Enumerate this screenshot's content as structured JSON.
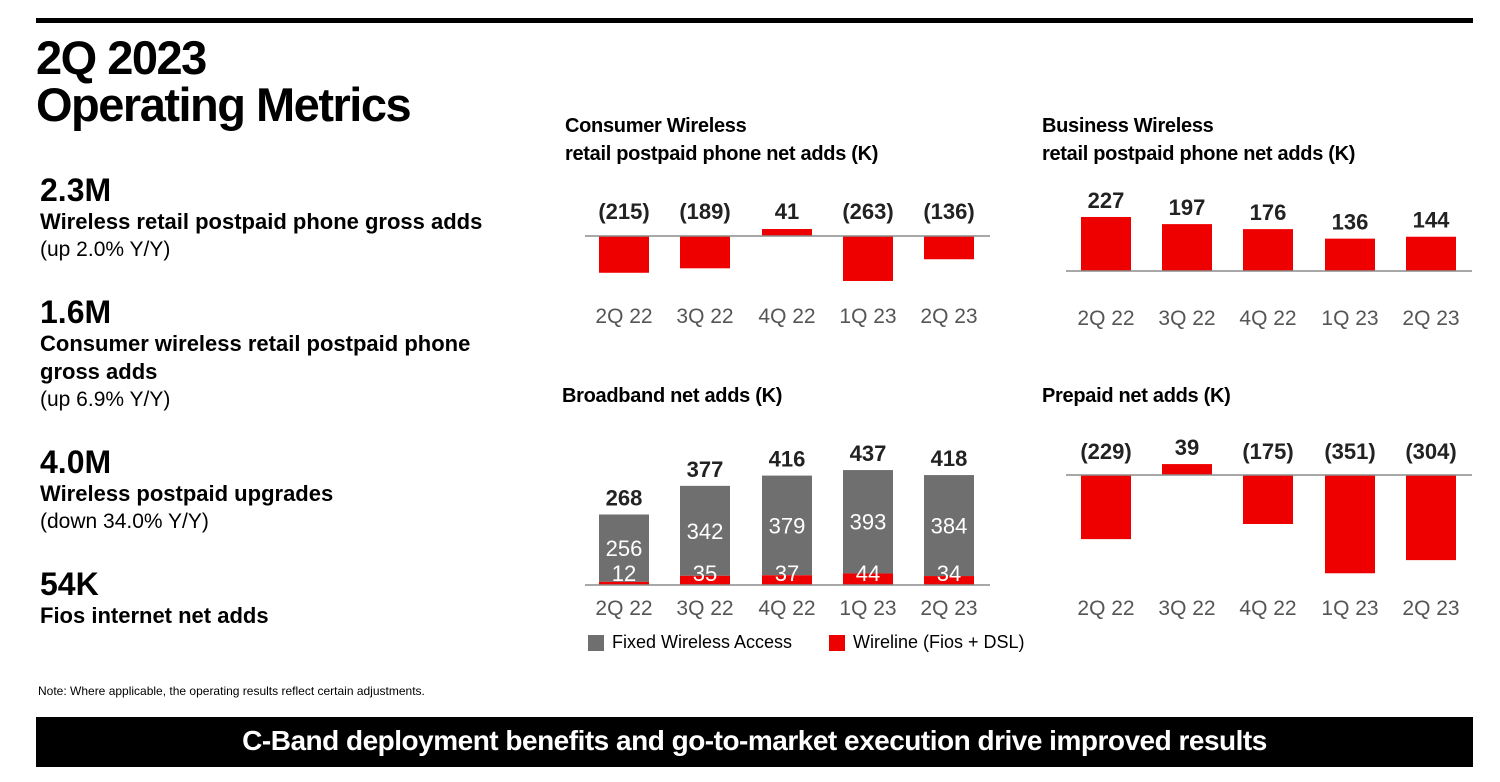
{
  "header": {
    "title_line1": "2Q 2023",
    "title_line2": "Operating Metrics"
  },
  "metrics": [
    {
      "value": "2.3M",
      "label": "Wireless retail postpaid phone gross adds",
      "change": "(up 2.0% Y/Y)"
    },
    {
      "value": "1.6M",
      "label": "Consumer wireless retail postpaid phone gross adds",
      "change": "(up 6.9% Y/Y)"
    },
    {
      "value": "4.0M",
      "label": "Wireless postpaid upgrades",
      "change": "(down 34.0% Y/Y)"
    },
    {
      "value": "54K",
      "label": "Fios internet net adds",
      "change": ""
    }
  ],
  "colors": {
    "red": "#EE0000",
    "gray": "#6F6F6F",
    "axis": "#8C8C8C"
  },
  "chart_data": [
    {
      "id": "consumer",
      "type": "bar",
      "title_line1": "Consumer Wireless",
      "title_line2": "retail postpaid phone net adds (K)",
      "categories": [
        "2Q 22",
        "3Q 22",
        "4Q 22",
        "1Q 23",
        "2Q 23"
      ],
      "values": [
        -215,
        -189,
        41,
        -263,
        -136
      ],
      "labels": [
        "(215)",
        "(189)",
        "41",
        "(263)",
        "(136)"
      ]
    },
    {
      "id": "business",
      "type": "bar",
      "title_line1": "Business Wireless",
      "title_line2": "retail postpaid phone net adds (K)",
      "categories": [
        "2Q 22",
        "3Q 22",
        "4Q 22",
        "1Q 23",
        "2Q 23"
      ],
      "values": [
        227,
        197,
        176,
        136,
        144
      ],
      "labels": [
        "227",
        "197",
        "176",
        "136",
        "144"
      ]
    },
    {
      "id": "broadband",
      "type": "bar",
      "stacked": true,
      "title_line1": "Broadband net adds (K)",
      "categories": [
        "2Q 22",
        "3Q 22",
        "4Q 22",
        "1Q 23",
        "2Q 23"
      ],
      "series": [
        {
          "name": "Wireline (Fios + DSL)",
          "values": [
            12,
            35,
            37,
            44,
            34
          ]
        },
        {
          "name": "Fixed Wireless Access",
          "values": [
            256,
            342,
            379,
            393,
            384
          ]
        }
      ],
      "totals": [
        268,
        377,
        416,
        437,
        418
      ],
      "legend": [
        "Fixed Wireless Access",
        "Wireline (Fios + DSL)"
      ]
    },
    {
      "id": "prepaid",
      "type": "bar",
      "title_line1": "Prepaid net adds (K)",
      "categories": [
        "2Q 22",
        "3Q 22",
        "4Q 22",
        "1Q 23",
        "2Q 23"
      ],
      "values": [
        -229,
        39,
        -175,
        -351,
        -304
      ],
      "labels": [
        "(229)",
        "39",
        "(175)",
        "(351)",
        "(304)"
      ]
    }
  ],
  "note": "Note:  Where applicable, the operating results reflect certain adjustments.",
  "banner": "C-Band deployment benefits and go-to-market execution drive improved results"
}
